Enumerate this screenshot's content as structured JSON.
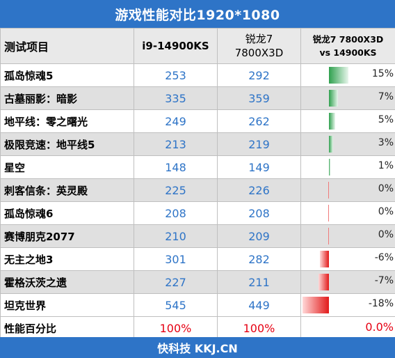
{
  "title": "游戏性能对比1920*1080",
  "footer": "快科技 KKJ.CN",
  "headers": {
    "name": "测试项目",
    "col1": "i9-14900KS",
    "col2_line1": "锐龙7",
    "col2_line2": "7800X3D",
    "col3_line1": "锐龙7 7800X3D",
    "col3_line2": "vs 14900KS"
  },
  "chart_data": {
    "type": "table",
    "columns": [
      "测试项目",
      "i9-14900KS",
      "锐龙7 7800X3D",
      "锐龙7 7800X3D vs 14900KS"
    ],
    "rows": [
      {
        "game": "孤岛惊魂5",
        "i9": "253",
        "r7": "292",
        "diff": 15,
        "diff_text": "15%"
      },
      {
        "game": "古墓丽影：暗影",
        "i9": "335",
        "r7": "359",
        "diff": 7,
        "diff_text": "7%"
      },
      {
        "game": "地平线：零之曙光",
        "i9": "249",
        "r7": "262",
        "diff": 5,
        "diff_text": "5%"
      },
      {
        "game": "极限竞速：地平线5",
        "i9": "213",
        "r7": "219",
        "diff": 3,
        "diff_text": "3%"
      },
      {
        "game": "星空",
        "i9": "148",
        "r7": "149",
        "diff": 1,
        "diff_text": "1%"
      },
      {
        "game": "刺客信条：英灵殿",
        "i9": "225",
        "r7": "226",
        "diff": 0,
        "diff_text": "0%"
      },
      {
        "game": "孤岛惊魂6",
        "i9": "208",
        "r7": "208",
        "diff": 0,
        "diff_text": "0%"
      },
      {
        "game": "赛博朋克2077",
        "i9": "210",
        "r7": "209",
        "diff": 0,
        "diff_text": "0%"
      },
      {
        "game": "无主之地3",
        "i9": "301",
        "r7": "282",
        "diff": -6,
        "diff_text": "-6%"
      },
      {
        "game": "霍格沃茨之遗",
        "i9": "227",
        "r7": "211",
        "diff": -7,
        "diff_text": "-7%"
      },
      {
        "game": "坦克世界",
        "i9": "545",
        "r7": "449",
        "diff": -18,
        "diff_text": "-18%"
      }
    ],
    "summary": {
      "game": "性能百分比",
      "i9": "100%",
      "r7": "100%",
      "diff": 0,
      "diff_text": "0.0%"
    },
    "diff_colors": {
      "positive": "#2fa04e",
      "negative": "#e21b1b"
    },
    "accent_color": "#2e74c7"
  }
}
